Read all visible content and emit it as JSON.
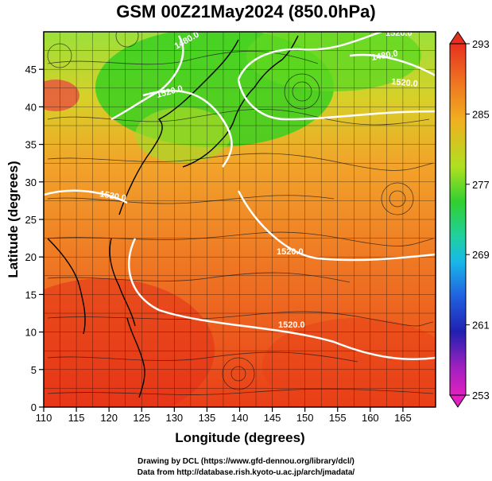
{
  "title": "GSM 00Z21May2024 (850.0hPa)",
  "xlabel": "Longitude (degrees)",
  "ylabel": "Latitude  (degrees)",
  "x_ticks": [
    "110",
    "115",
    "120",
    "125",
    "130",
    "135",
    "140",
    "145",
    "150",
    "155",
    "160",
    "165"
  ],
  "y_ticks": [
    "0",
    "5",
    "10",
    "15",
    "20",
    "25",
    "30",
    "35",
    "40",
    "45"
  ],
  "colorbar": {
    "ticks": [
      "293",
      "285",
      "277",
      "269",
      "261",
      "253"
    ],
    "colors": {
      "293": "#e8361e",
      "285": "#f0a020",
      "277": "#3cd01e",
      "269": "#18c8e8",
      "261": "#2020c0",
      "253": "#e020c0"
    }
  },
  "contour_labels": [
    "1480.0",
    "1520.0",
    "1520.0",
    "1480.0",
    "1520.0",
    "1520.0",
    "1520.0",
    "1520.0"
  ],
  "credits": {
    "line1": "Drawing by DCL (https://www.gfd-dennou.org/library/dcl/)",
    "line2": "Data from http://database.rish.kyoto-u.ac.jp/arch/jmadata/"
  }
}
